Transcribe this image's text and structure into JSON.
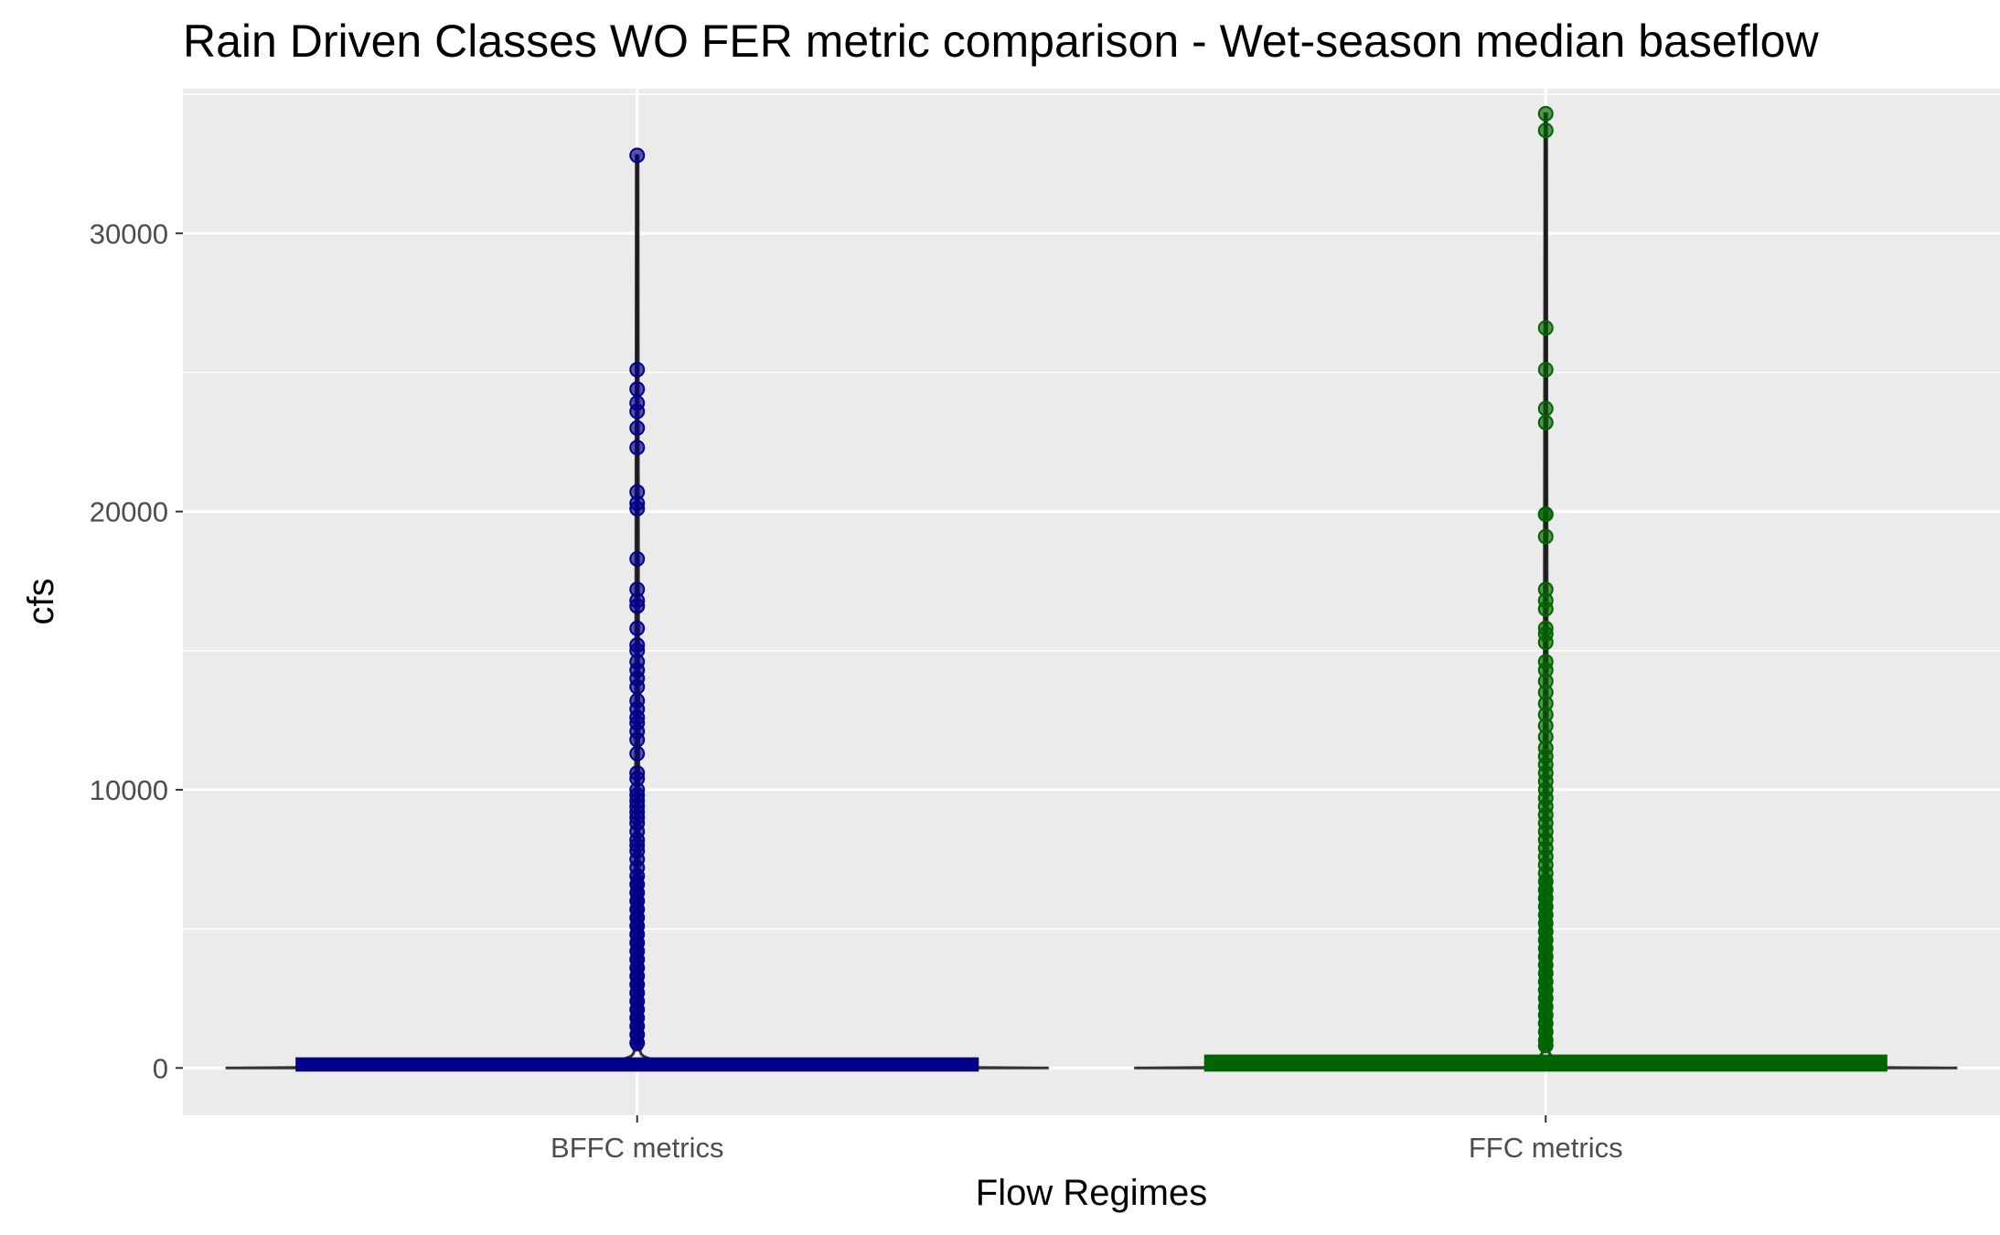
{
  "chart_data": {
    "type": "violin",
    "title": "Rain Driven Classes WO FER metric comparison  - Wet-season median baseflow",
    "xlabel": "Flow Regimes",
    "ylabel": "cfs",
    "ylim": [
      -1700,
      35200
    ],
    "y_ticks": [
      0,
      10000,
      20000,
      30000
    ],
    "y_tick_labels": [
      "0",
      "10000",
      "20000",
      "30000"
    ],
    "categories": [
      "BFFC metrics",
      "FFC metrics"
    ],
    "series": [
      {
        "name": "BFFC metrics",
        "color": "#00008B",
        "max": 32800,
        "box": {
          "q1": 0,
          "median": 60,
          "q3": 250
        },
        "outliers": [
          32800,
          25100,
          24400,
          23900,
          23600,
          23000,
          22300,
          20700,
          20300,
          20100,
          18300,
          17200,
          16800,
          16600,
          15800,
          15200,
          15000,
          14600,
          14300,
          14000,
          13700,
          13200,
          12900,
          12600,
          12400,
          12100,
          11800,
          11300,
          10600,
          10400,
          10000,
          9800,
          9600,
          9400,
          9200,
          9000,
          8800,
          8500,
          8200,
          8000,
          7800,
          7500,
          7200,
          6900,
          6600,
          6300,
          6000,
          5700,
          5400,
          5100,
          4800,
          4500,
          4200,
          3900,
          3600,
          3300,
          3000,
          2700,
          2400,
          2100,
          1800,
          1500,
          1200,
          900
        ]
      },
      {
        "name": "FFC metrics",
        "color": "#006400",
        "max": 34300,
        "box": {
          "q1": 0,
          "median": 80,
          "q3": 350
        },
        "outliers": [
          34300,
          33700,
          26600,
          25100,
          23700,
          23200,
          19900,
          19900,
          19100,
          17200,
          16800,
          16500,
          15800,
          15600,
          15300,
          14600,
          14300,
          13900,
          13500,
          13100,
          12700,
          12300,
          11900,
          11500,
          11200,
          10900,
          10600,
          10300,
          10000,
          9700,
          9400,
          9100,
          8800,
          8500,
          8200,
          7900,
          7600,
          7300,
          7000,
          6700,
          6400,
          6100,
          5800,
          5500,
          5200,
          4900,
          4600,
          4300,
          4000,
          3700,
          3400,
          3100,
          2800,
          2500,
          2200,
          1900,
          1600,
          1300,
          1000,
          800
        ]
      }
    ]
  }
}
